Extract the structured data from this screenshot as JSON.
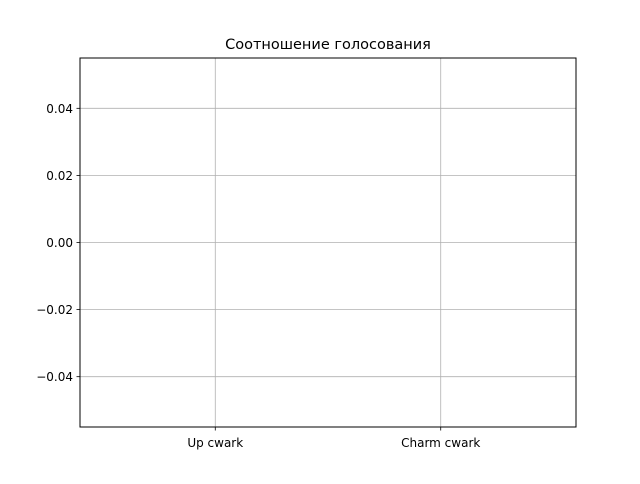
{
  "chart_data": {
    "type": "bar",
    "title": "Соотношение голосования",
    "xlabel": "",
    "ylabel": "",
    "categories": [
      "Up cwark",
      "Charm cwark"
    ],
    "values": [
      0,
      0
    ],
    "ylim": [
      -0.055,
      0.055
    ],
    "yticks": [
      -0.04,
      -0.02,
      0.0,
      0.02,
      0.04
    ],
    "ytick_labels": [
      "−0.04",
      "−0.02",
      "0.00",
      "0.02",
      "0.04"
    ],
    "grid": true,
    "legend": "none",
    "colors": {
      "grid": "#b0b0b0",
      "axes": "#000000",
      "bar": "#1f77b4"
    }
  }
}
